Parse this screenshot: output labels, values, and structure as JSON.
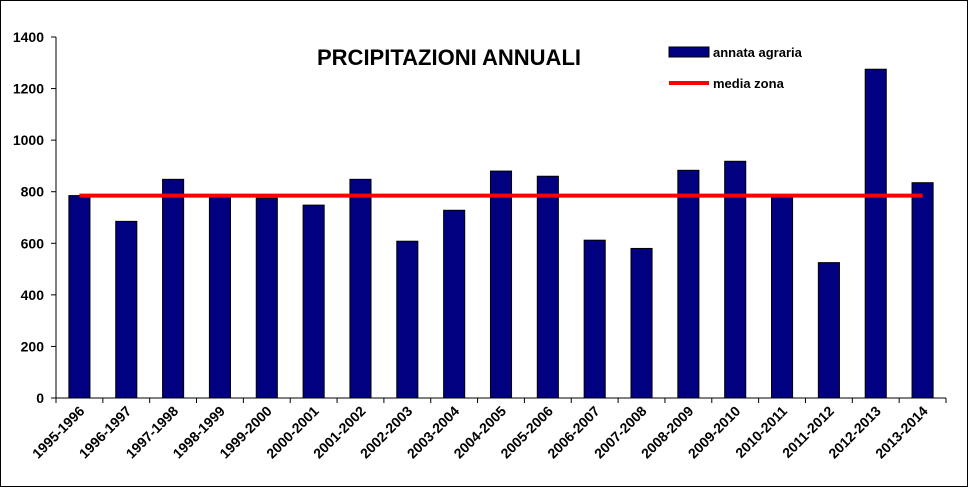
{
  "chart_data": {
    "type": "bar",
    "title": "PRCIPITAZIONI ANNUALI",
    "xlabel": "",
    "ylabel": "",
    "ylim": [
      0,
      1400
    ],
    "yticks": [
      0,
      200,
      400,
      600,
      800,
      1000,
      1200,
      1400
    ],
    "grid": false,
    "legend_position": "top-right",
    "categories": [
      "1995-1996",
      "1996-1997",
      "1997-1998",
      "1998-1999",
      "1999-2000",
      "2000-2001",
      "2001-2002",
      "2002-2003",
      "2003-2004",
      "2004-2005",
      "2005-2006",
      "2006-2007",
      "2007-2008",
      "2008-2009",
      "2009-2010",
      "2010-2011",
      "2011-2012",
      "2012-2013",
      "2013-2014"
    ],
    "series": [
      {
        "name": "annata agraria",
        "type": "bar",
        "color": "#000080",
        "values": [
          785,
          685,
          848,
          780,
          775,
          748,
          848,
          608,
          728,
          880,
          860,
          612,
          580,
          883,
          918,
          783,
          525,
          1275,
          835
        ]
      },
      {
        "name": "media zona",
        "type": "line",
        "color": "#ff0000",
        "values": [
          785,
          785,
          785,
          785,
          785,
          785,
          785,
          785,
          785,
          785,
          785,
          785,
          785,
          785,
          785,
          785,
          785,
          785,
          785
        ]
      }
    ]
  }
}
